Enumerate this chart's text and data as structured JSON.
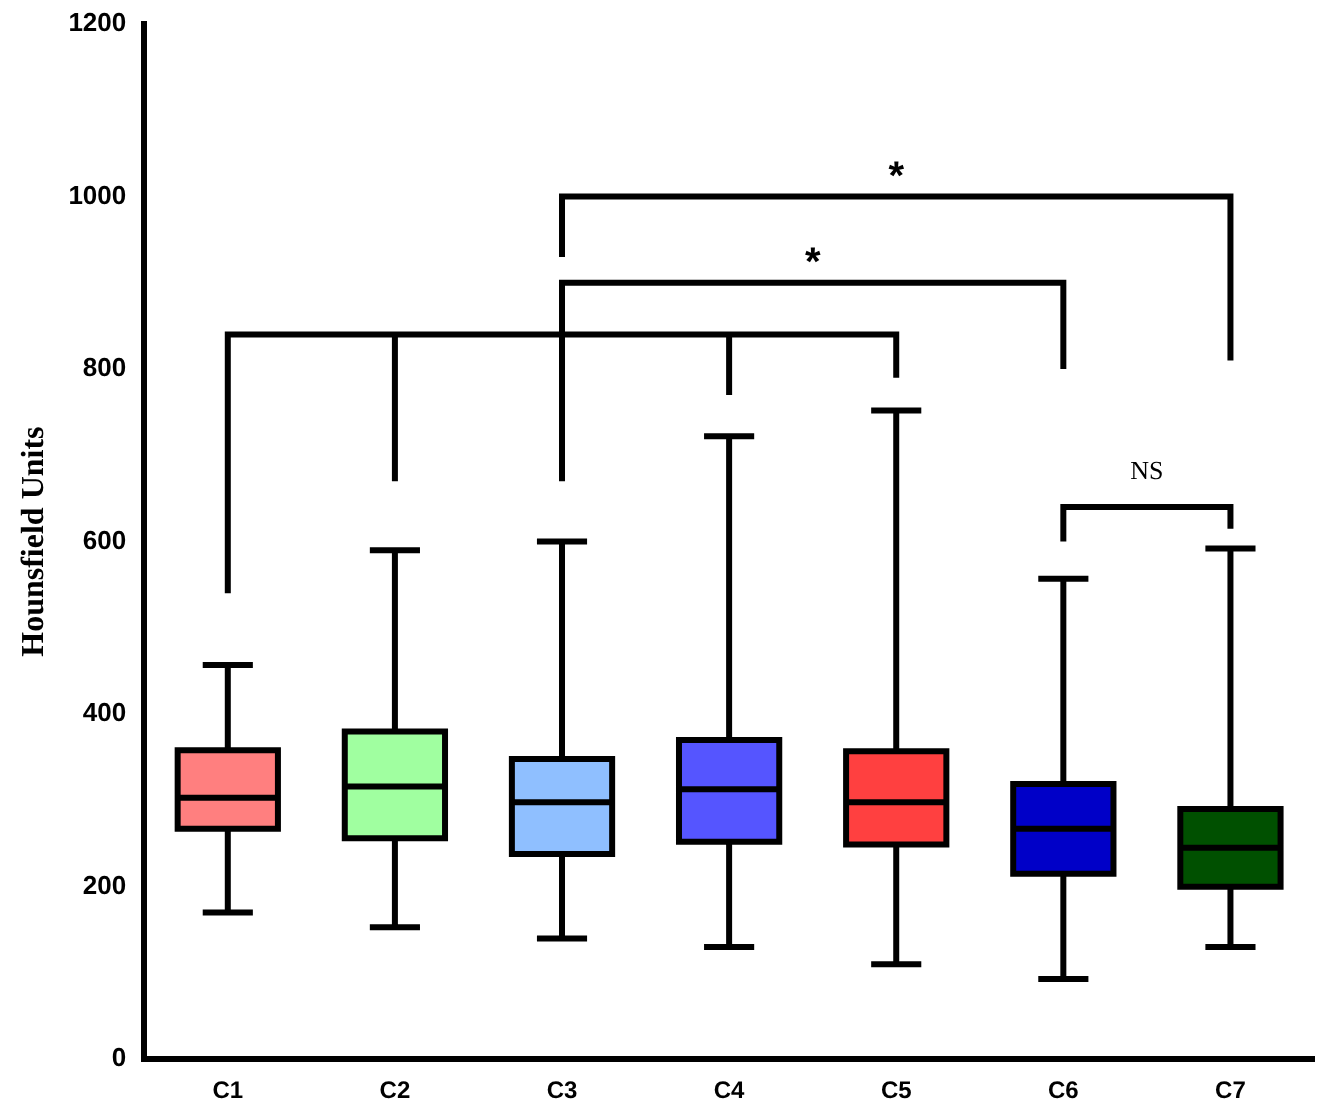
{
  "chart_data": {
    "type": "box",
    "ylabel": "Hounsfield Units",
    "categories": [
      "C1",
      "C2",
      "C3",
      "C4",
      "C5",
      "C6",
      "C7"
    ],
    "colors": [
      "#ff7f7f",
      "#a0ffa0",
      "#8fbfff",
      "#5555ff",
      "#ff4040",
      "#0000c8",
      "#005000"
    ],
    "boxes": [
      {
        "low": 170,
        "q1": 267,
        "median": 303,
        "q3": 358,
        "high": 457
      },
      {
        "low": 153,
        "q1": 256,
        "median": 316,
        "q3": 380,
        "high": 590
      },
      {
        "low": 140,
        "q1": 238,
        "median": 298,
        "q3": 348,
        "high": 600
      },
      {
        "low": 130,
        "q1": 252,
        "median": 313,
        "q3": 370,
        "high": 722
      },
      {
        "low": 110,
        "q1": 249,
        "median": 298,
        "q3": 357,
        "high": 752
      },
      {
        "low": 93,
        "q1": 215,
        "median": 267,
        "q3": 319,
        "high": 557
      },
      {
        "low": 130,
        "q1": 200,
        "median": 245,
        "q3": 290,
        "high": 592
      }
    ],
    "ylim": [
      0,
      1200
    ],
    "yticks": [
      0,
      200,
      400,
      600,
      800,
      1000,
      1200
    ],
    "grid": false,
    "legend": false,
    "annotations": [
      "*",
      "*",
      "NS"
    ]
  }
}
